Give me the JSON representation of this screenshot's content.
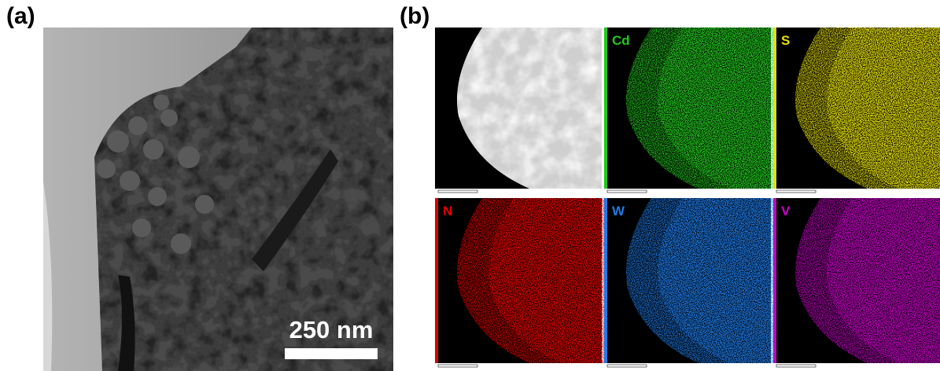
{
  "panel_a": {
    "label": "(a)",
    "scale_bar": "250 nm"
  },
  "panel_b": {
    "label": "(b)",
    "maps": [
      "Cd",
      "S",
      "N",
      "W",
      "V"
    ]
  }
}
